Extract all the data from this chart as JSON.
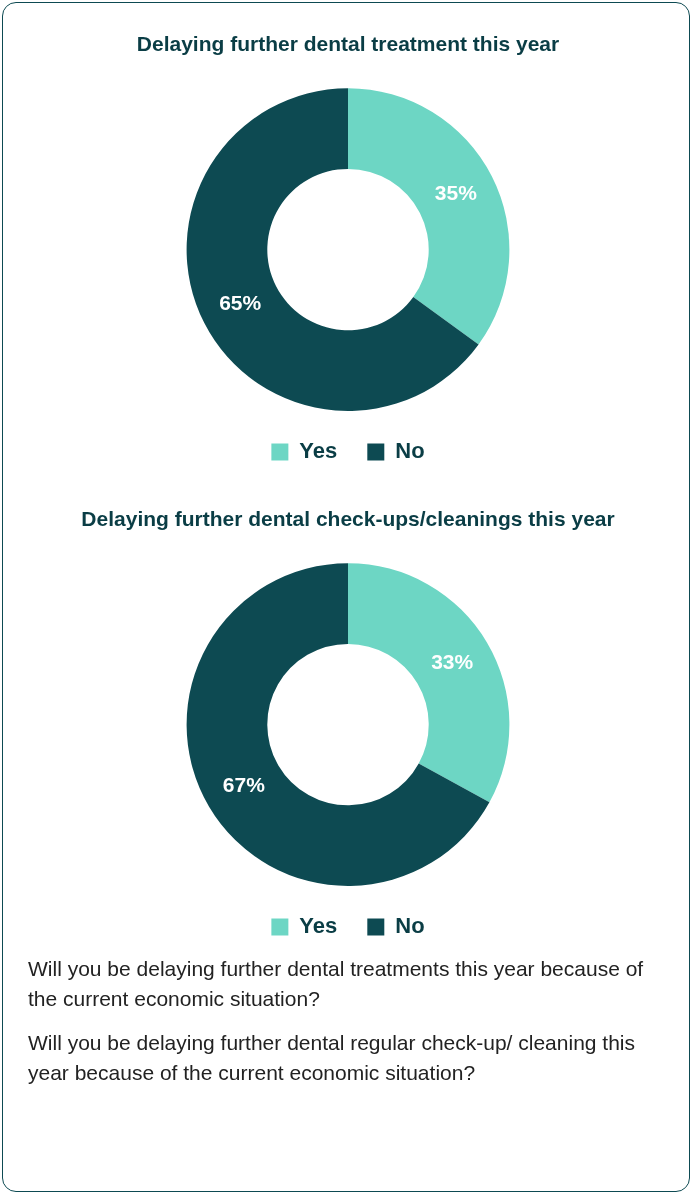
{
  "chart_data": [
    {
      "type": "donut",
      "title": "Delaying further dental treatment this year",
      "categories": [
        "Yes",
        "No"
      ],
      "values": [
        35,
        65
      ],
      "value_labels": [
        "35%",
        "65%"
      ],
      "colors": [
        "#6dd6c4",
        "#0d4a52"
      ],
      "legend": "bottom",
      "annotations": [
        "Will you be delaying further dental treatments this year because of the current economic situation?"
      ]
    },
    {
      "type": "donut",
      "title": "Delaying further dental check-ups/cleanings this year",
      "categories": [
        "Yes",
        "No"
      ],
      "values": [
        33,
        67
      ],
      "value_labels": [
        "33%",
        "67%"
      ],
      "colors": [
        "#6dd6c4",
        "#0d4a52"
      ],
      "legend": "bottom",
      "annotations": [
        "Will you be delaying further dental regular check-up/ cleaning this year because of the current economic situation?"
      ]
    }
  ]
}
